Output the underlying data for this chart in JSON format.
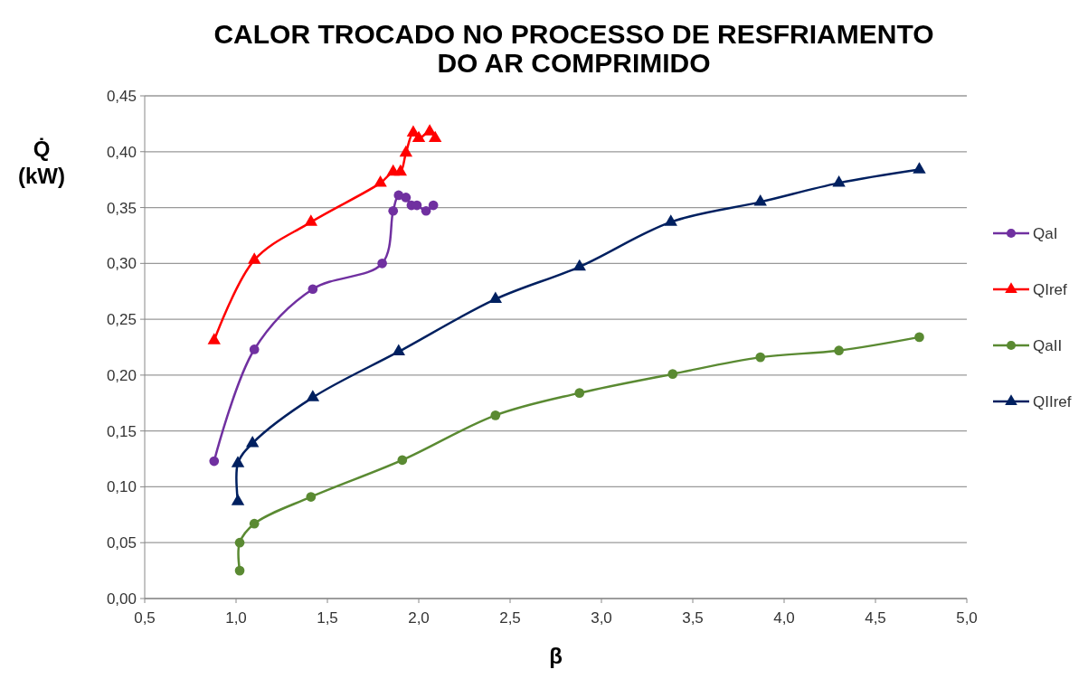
{
  "chart_data": {
    "type": "line",
    "title": "CALOR TROCADO NO PROCESSO DE RESFRIAMENTO\nDO AR COMPRIMIDO",
    "xlabel": "β",
    "ylabel": "Q̇\n(kW)",
    "xlim": [
      0.5,
      5.0
    ],
    "xticks": [
      {
        "value": 0.5,
        "label": "0,5"
      },
      {
        "value": 1.0,
        "label": "1,0"
      },
      {
        "value": 1.5,
        "label": "1,5"
      },
      {
        "value": 2.0,
        "label": "2,0"
      },
      {
        "value": 2.5,
        "label": "2,5"
      },
      {
        "value": 3.0,
        "label": "3,0"
      },
      {
        "value": 3.5,
        "label": "3,5"
      },
      {
        "value": 4.0,
        "label": "4,0"
      },
      {
        "value": 4.5,
        "label": "4,5"
      },
      {
        "value": 5.0,
        "label": "5,0"
      }
    ],
    "ylim": [
      0,
      0.45
    ],
    "yticks": [
      {
        "value": 0,
        "label": "0,00"
      },
      {
        "value": 0.05,
        "label": "0,05"
      },
      {
        "value": 0.1,
        "label": "0,10"
      },
      {
        "value": 0.15,
        "label": "0,15"
      },
      {
        "value": 0.2,
        "label": "0,20"
      },
      {
        "value": 0.25,
        "label": "0,25"
      },
      {
        "value": 0.3,
        "label": "0,30"
      },
      {
        "value": 0.35,
        "label": "0,35"
      },
      {
        "value": 0.4,
        "label": "0,40"
      },
      {
        "value": 0.45,
        "label": "0,45"
      }
    ],
    "grid": "y",
    "legend": "right",
    "series": [
      {
        "name": "QaI",
        "color": "#7030a0",
        "marker": "circle",
        "x": [
          0.88,
          1.1,
          1.42,
          1.8,
          1.86,
          1.89,
          1.93,
          1.96,
          1.99,
          2.04,
          2.08
        ],
        "values": [
          0.123,
          0.223,
          0.277,
          0.3,
          0.347,
          0.361,
          0.359,
          0.352,
          0.352,
          0.347,
          0.352
        ]
      },
      {
        "name": "QIref",
        "color": "#ff0000",
        "marker": "triangle",
        "x": [
          0.88,
          1.1,
          1.41,
          1.79,
          1.86,
          1.9,
          1.93,
          1.97,
          2.0,
          2.06,
          2.09
        ],
        "values": [
          0.231,
          0.303,
          0.337,
          0.372,
          0.382,
          0.382,
          0.399,
          0.417,
          0.412,
          0.418,
          0.412
        ]
      },
      {
        "name": "QaII",
        "color": "#5a8a32",
        "marker": "circle",
        "x": [
          1.02,
          1.02,
          1.1,
          1.41,
          1.91,
          2.42,
          2.88,
          3.39,
          3.87,
          4.3,
          4.74
        ],
        "values": [
          0.025,
          0.05,
          0.067,
          0.091,
          0.124,
          0.164,
          0.184,
          0.201,
          0.216,
          0.222,
          0.234
        ]
      },
      {
        "name": "QIIref",
        "color": "#002060",
        "marker": "triangle",
        "x": [
          1.01,
          1.01,
          1.09,
          1.42,
          1.89,
          2.42,
          2.88,
          3.38,
          3.87,
          4.3,
          4.74
        ],
        "values": [
          0.087,
          0.121,
          0.139,
          0.18,
          0.221,
          0.268,
          0.297,
          0.337,
          0.355,
          0.372,
          0.384
        ]
      }
    ]
  }
}
